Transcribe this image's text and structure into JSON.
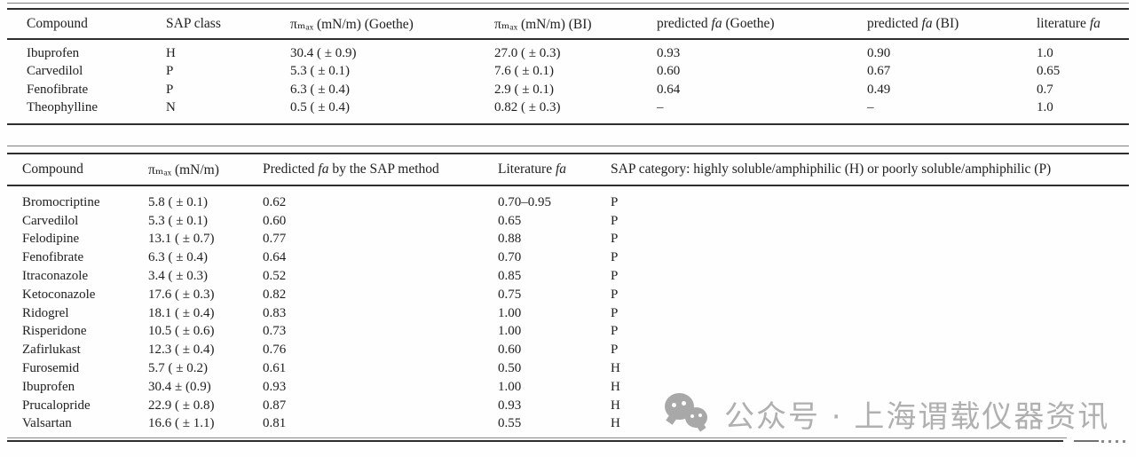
{
  "page": {
    "background": "#fefefe",
    "text_color": "#202020",
    "rule_color": "#2e2e2e",
    "watermark_color": "#b0b0b0"
  },
  "table1": {
    "columns": [
      {
        "pre": "Compound",
        "em": "",
        "post": ""
      },
      {
        "pre": "SAP class",
        "em": "",
        "post": ""
      },
      {
        "pre": "πₘₐₓ (mN/m) (Goethe)",
        "em": "",
        "post": ""
      },
      {
        "pre": "πₘₐₓ (mN/m) (BI)",
        "em": "",
        "post": ""
      },
      {
        "pre": "predicted ",
        "em": "fa",
        "post": " (Goethe)"
      },
      {
        "pre": "predicted ",
        "em": "fa",
        "post": " (BI)"
      },
      {
        "pre": "literature ",
        "em": "fa",
        "post": ""
      }
    ],
    "rows": [
      [
        "Ibuprofen",
        "H",
        "30.4 ( ± 0.9)",
        "27.0 ( ± 0.3)",
        "0.93",
        "0.90",
        "1.0"
      ],
      [
        "Carvedilol",
        "P",
        "5.3 ( ± 0.1)",
        "7.6 ( ± 0.1)",
        "0.60",
        "0.67",
        "0.65"
      ],
      [
        "Fenofibrate",
        "P",
        "6.3 ( ± 0.4)",
        "2.9 ( ± 0.1)",
        "0.64",
        "0.49",
        "0.7"
      ],
      [
        "Theophylline",
        "N",
        "0.5 ( ± 0.4)",
        "0.82 ( ± 0.3)",
        "–",
        "–",
        "1.0"
      ]
    ]
  },
  "table2": {
    "columns": [
      {
        "pre": "Compound",
        "em": "",
        "post": ""
      },
      {
        "pre": "πₘₐₓ (mN/m)",
        "em": "",
        "post": ""
      },
      {
        "pre": "Predicted ",
        "em": "fa",
        "post": " by the SAP method"
      },
      {
        "pre": "Literature ",
        "em": "fa",
        "post": ""
      },
      {
        "pre": "SAP category: highly soluble/amphiphilic (H) or poorly soluble/amphiphilic (P)",
        "em": "",
        "post": ""
      }
    ],
    "rows": [
      [
        "Bromocriptine",
        "5.8 ( ± 0.1)",
        "0.62",
        "0.70–0.95",
        "P"
      ],
      [
        "Carvedilol",
        "5.3 ( ± 0.1)",
        "0.60",
        "0.65",
        "P"
      ],
      [
        "Felodipine",
        "13.1 ( ± 0.7)",
        "0.77",
        "0.88",
        "P"
      ],
      [
        "Fenofibrate",
        "6.3 ( ± 0.4)",
        "0.64",
        "0.70",
        "P"
      ],
      [
        "Itraconazole",
        "3.4 ( ± 0.3)",
        "0.52",
        "0.85",
        "P"
      ],
      [
        "Ketoconazole",
        "17.6 ( ± 0.3)",
        "0.82",
        "0.75",
        "P"
      ],
      [
        "Ridogrel",
        "18.1 ( ± 0.4)",
        "0.83",
        "1.00",
        "P"
      ],
      [
        "Risperidone",
        "10.5 ( ± 0.6)",
        "0.73",
        "1.00",
        "P"
      ],
      [
        "Zafirlukast",
        "12.3 ( ± 0.4)",
        "0.76",
        "0.60",
        "P"
      ],
      [
        "Furosemid",
        "5.7 ( ± 0.2)",
        "0.61",
        "0.50",
        "H"
      ],
      [
        "Ibuprofen",
        "30.4 ± (0.9)",
        "0.93",
        "1.00",
        "H"
      ],
      [
        "Prucalopride",
        "22.9 ( ± 0.8)",
        "0.87",
        "0.93",
        "H"
      ],
      [
        "Valsartan",
        "16.6 ( ± 1.1)",
        "0.81",
        "0.55",
        "H"
      ]
    ]
  },
  "watermark": {
    "icon": "wechat-icon",
    "text": "公众号 · 上海谓载仪器资讯"
  }
}
